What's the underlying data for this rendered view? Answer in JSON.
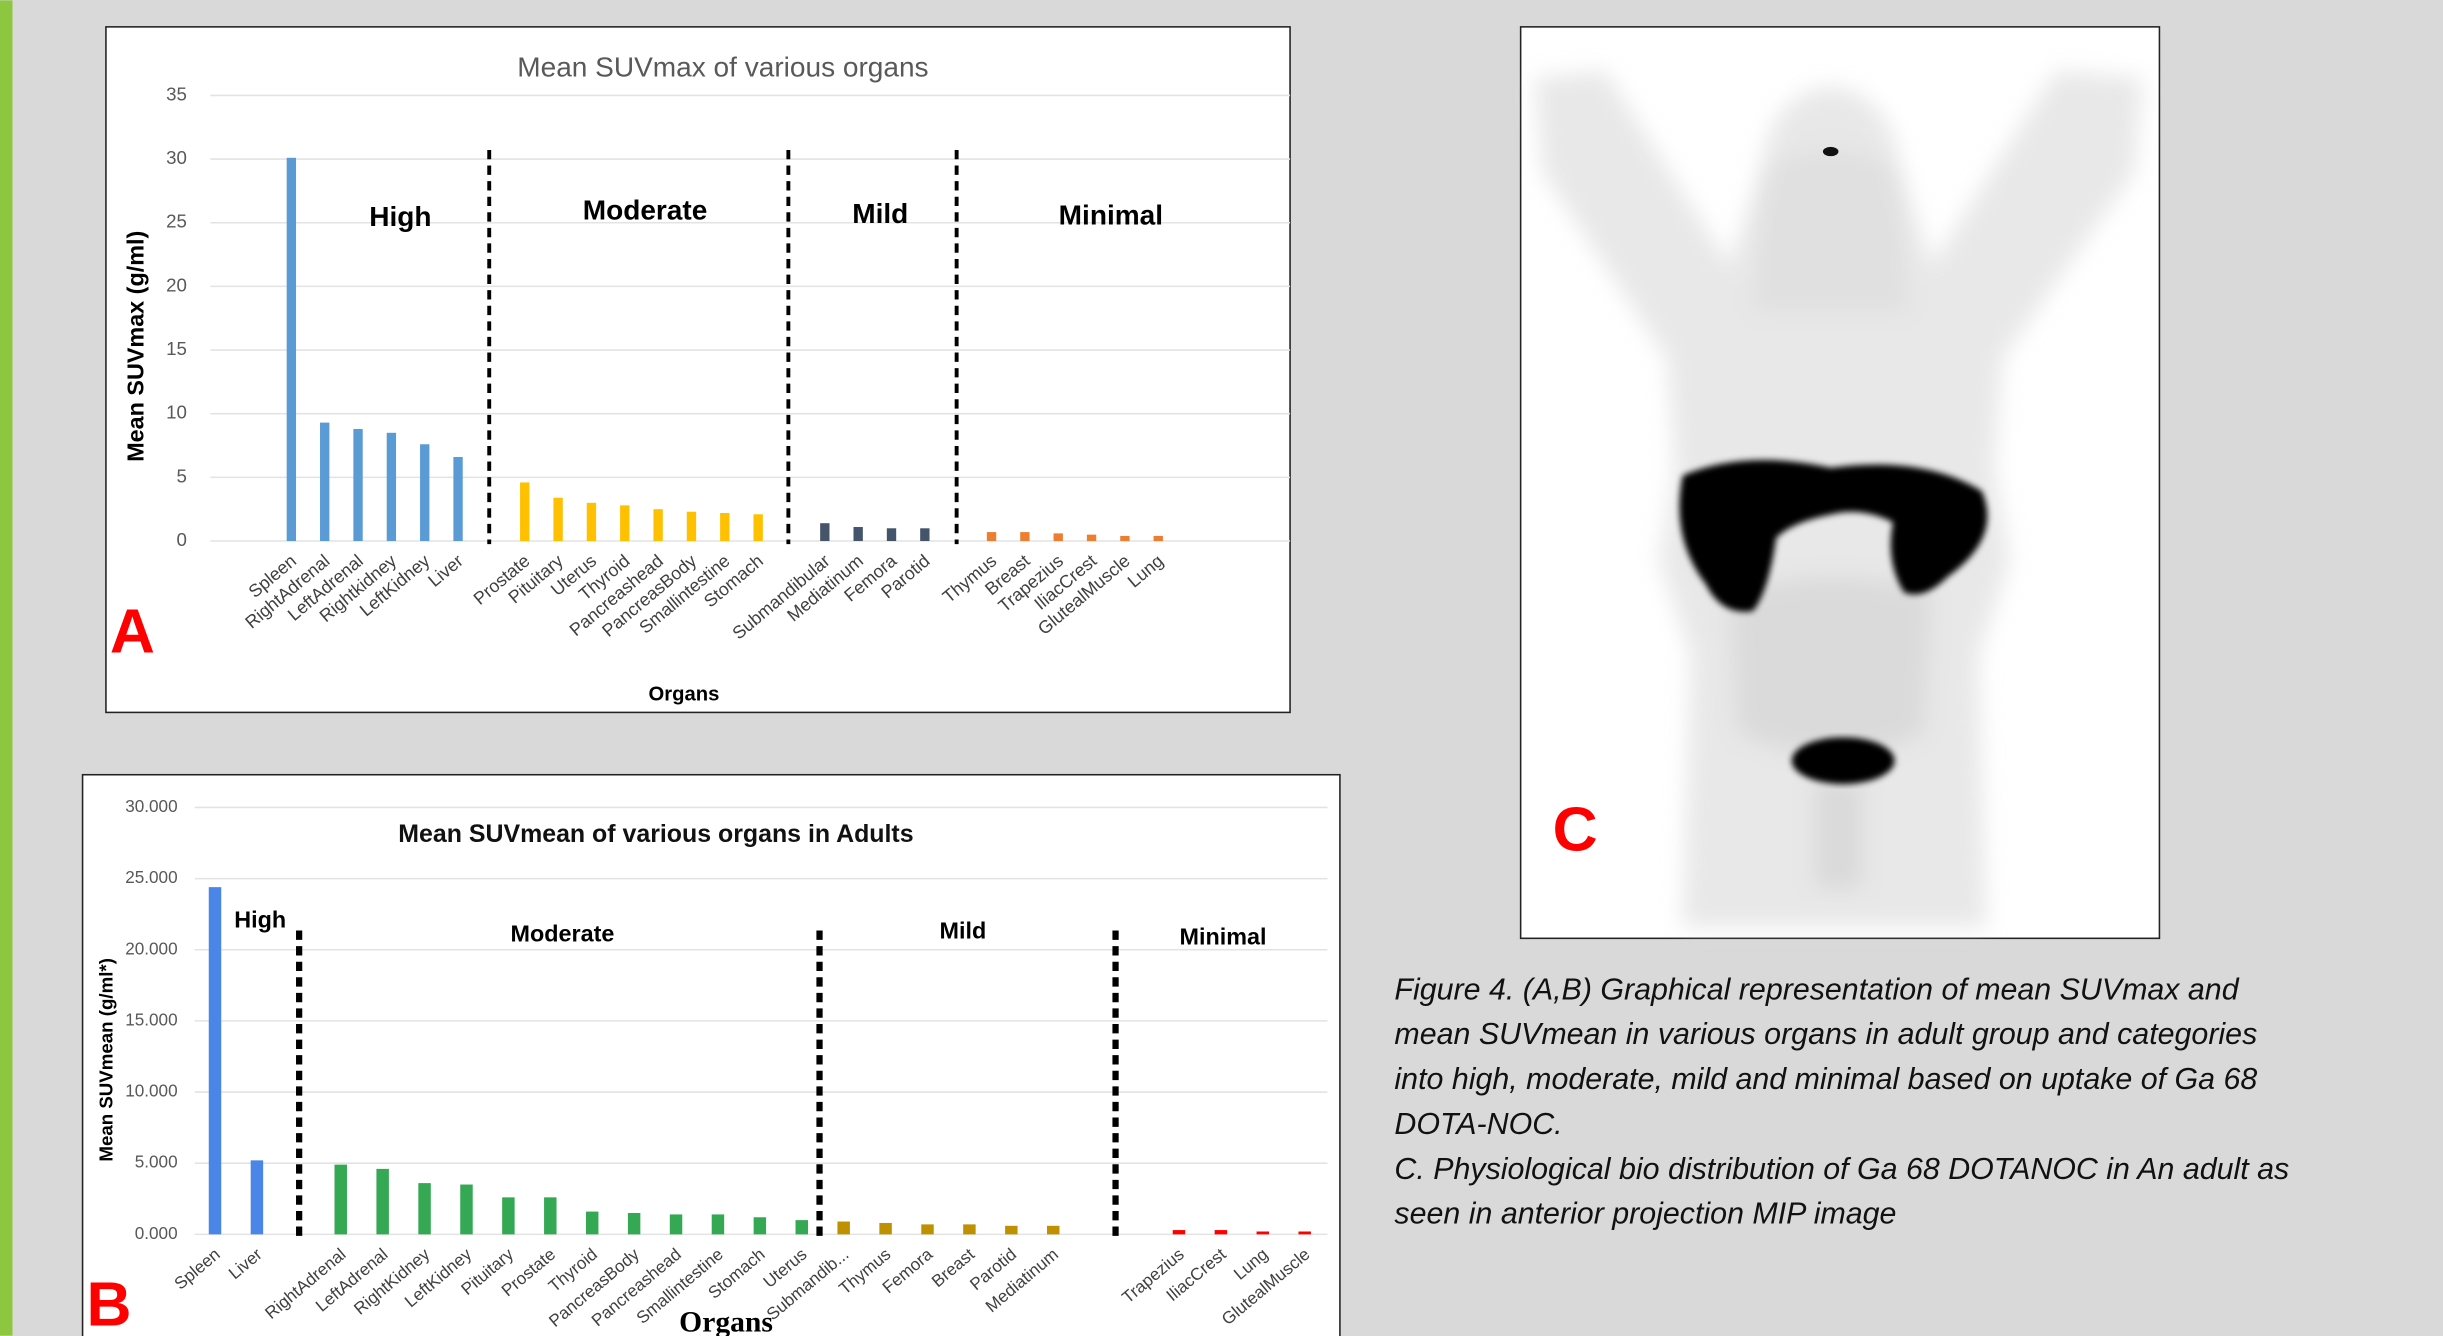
{
  "chart_data": [
    {
      "type": "bar",
      "panel_label": "A",
      "title": "Mean SUVmax of various organs",
      "y_label": "Mean SUVmax (g/ml)",
      "x_label": "Organs",
      "categories": [
        "Spleen",
        "RightAdrenal",
        "LeftAdrenal",
        "Rightkidney",
        "LeftKidney",
        "Liver",
        null,
        "Prostate",
        "Pituitary",
        "Uterus",
        "Thyroid",
        "Pancreashead",
        "PancreasBody",
        "Smallintestine",
        "Stomach",
        null,
        "Submandibular",
        "Mediatinum",
        "Femora",
        "Parotid",
        null,
        "Thymus",
        "Breast",
        "Trapezius",
        "IliacCrest",
        "GlutealMuscle",
        "Lung"
      ],
      "values": [
        30.1,
        9.3,
        8.8,
        8.5,
        7.6,
        6.6,
        null,
        4.6,
        3.4,
        3.0,
        2.8,
        2.5,
        2.3,
        2.2,
        2.1,
        null,
        1.4,
        1.1,
        1.0,
        1.0,
        null,
        0.7,
        0.7,
        0.6,
        0.5,
        0.4,
        0.4
      ],
      "colors": [
        "#5b9bd5",
        "#5b9bd5",
        "#5b9bd5",
        "#5b9bd5",
        "#5b9bd5",
        "#5b9bd5",
        null,
        "#ffc000",
        "#ffc000",
        "#ffc000",
        "#ffc000",
        "#ffc000",
        "#ffc000",
        "#ffc000",
        "#ffc000",
        null,
        "#44546a",
        "#44546a",
        "#44546a",
        "#44546a",
        null,
        "#ed7d31",
        "#ed7d31",
        "#ed7d31",
        "#ed7d31",
        "#ed7d31",
        "#ed7d31"
      ],
      "group_labels": [
        "High",
        "Moderate",
        "Mild",
        "Minimal"
      ],
      "ylim": [
        0,
        35
      ],
      "yticks": [
        0,
        5,
        10,
        15,
        20,
        25,
        30,
        35
      ],
      "grid": true
    },
    {
      "type": "bar",
      "panel_label": "B",
      "title": "Mean SUVmean of various organs in Adults",
      "y_label": "Mean SUVmean (g/ml*)",
      "x_label": "Organs",
      "categories": [
        "Spleen",
        "Liver",
        null,
        "RightAdrenal",
        "LeftAdrenal",
        "RightKidney",
        "LeftKidney",
        "Pituitary",
        "Prostate",
        "Thyroid",
        "PancreasBody",
        "Pancreashead",
        "Smallintestine",
        "Stomach",
        "Uterus",
        "Submandib...",
        "Thymus",
        "Femora",
        "Breast",
        "Parotid",
        "Mediatinum",
        null,
        null,
        "Trapezius",
        "IliacCrest",
        "Lung",
        "GlutealMuscle"
      ],
      "values": [
        24.4,
        5.2,
        null,
        4.9,
        4.6,
        3.6,
        3.5,
        2.6,
        2.6,
        1.6,
        1.5,
        1.4,
        1.4,
        1.2,
        1.0,
        0.9,
        0.8,
        0.7,
        0.7,
        0.6,
        0.6,
        null,
        null,
        0.3,
        0.3,
        0.2,
        0.2
      ],
      "colors": [
        "#4a86e8",
        "#4a86e8",
        null,
        "#34a853",
        "#34a853",
        "#34a853",
        "#34a853",
        "#34a853",
        "#34a853",
        "#34a853",
        "#34a853",
        "#34a853",
        "#34a853",
        "#34a853",
        "#34a853",
        "#bf9000",
        "#bf9000",
        "#bf9000",
        "#bf9000",
        "#bf9000",
        "#bf9000",
        null,
        null,
        "#ff0000",
        "#ff0000",
        "#ff0000",
        "#ff0000"
      ],
      "group_labels": [
        "High",
        "Moderate",
        "Mild",
        "Minimal"
      ],
      "ylim": [
        0,
        30
      ],
      "yticks": [
        {
          "value": 0,
          "label": "0.000"
        },
        {
          "value": 5,
          "label": "5.000"
        },
        {
          "value": 10,
          "label": "10.000"
        },
        {
          "value": 15,
          "label": "15.000"
        },
        {
          "value": 20,
          "label": "20.000"
        },
        {
          "value": 25,
          "label": "25.000"
        },
        {
          "value": 30,
          "label": "30.000"
        }
      ],
      "grid": true
    }
  ],
  "image_panel": {
    "label": "C"
  },
  "caption": {
    "lines": [
      "Figure 4. (A,B) Graphical representation of mean SUVmax and",
      "mean SUVmean in various organs in adult group and categories",
      "into high, moderate, mild and minimal based on uptake of Ga 68",
      "DOTA-NOC.",
      "C. Physiological bio distribution of Ga 68 DOTANOC in An adult as",
      "seen in anterior projection MIP image"
    ]
  }
}
